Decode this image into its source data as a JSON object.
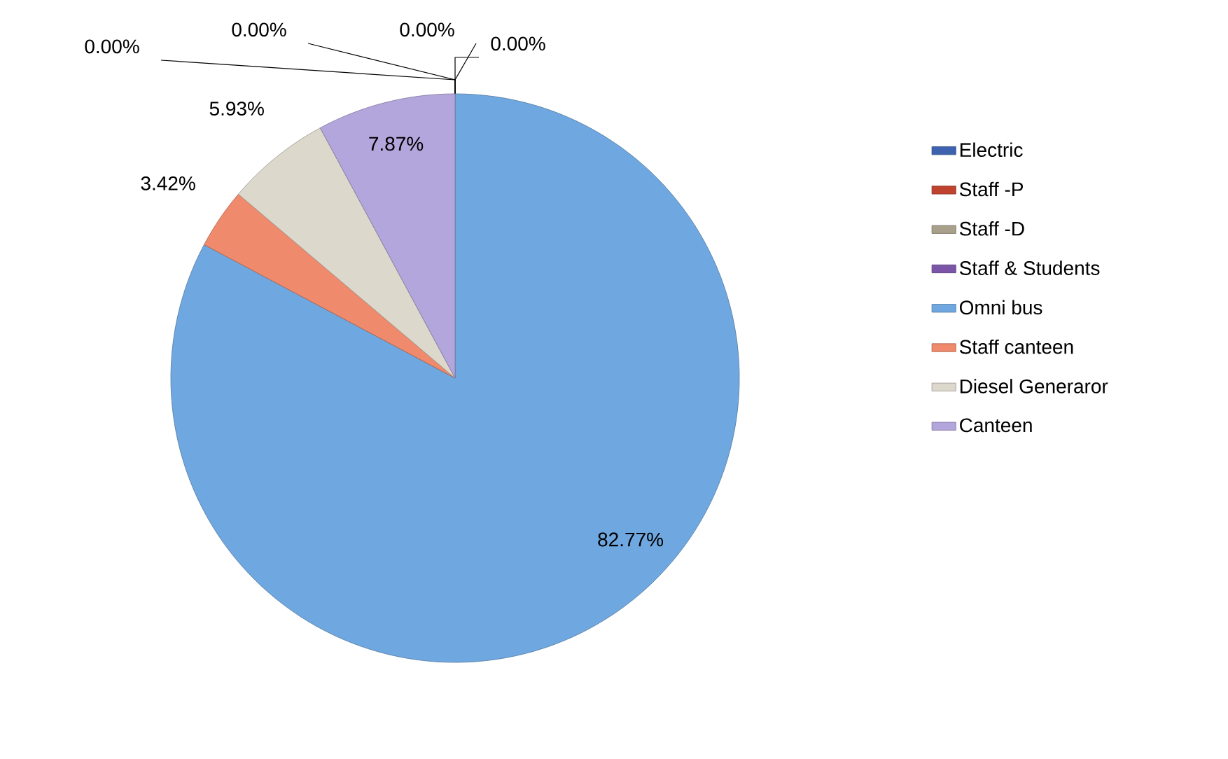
{
  "chart_data": {
    "type": "pie",
    "categories": [
      "Electric",
      "Staff -P",
      "Staff -D",
      "Staff & Students",
      "Omni bus",
      "Staff  canteen",
      "Diesel Generaror",
      "Canteen"
    ],
    "values": [
      0,
      0,
      0,
      0,
      82.77,
      3.42,
      5.93,
      7.87
    ],
    "value_labels": [
      "0.00%",
      "0.00%",
      "0.00%",
      "0.00%",
      "82.77%",
      "3.42%",
      "5.93%",
      "7.87%"
    ],
    "colors": [
      "#3d62b0",
      "#c0432f",
      "#a8a08a",
      "#7b55a8",
      "#6fa8e0",
      "#f08a6c",
      "#dcd8cc",
      "#b3a6dc"
    ],
    "legend": "right"
  }
}
